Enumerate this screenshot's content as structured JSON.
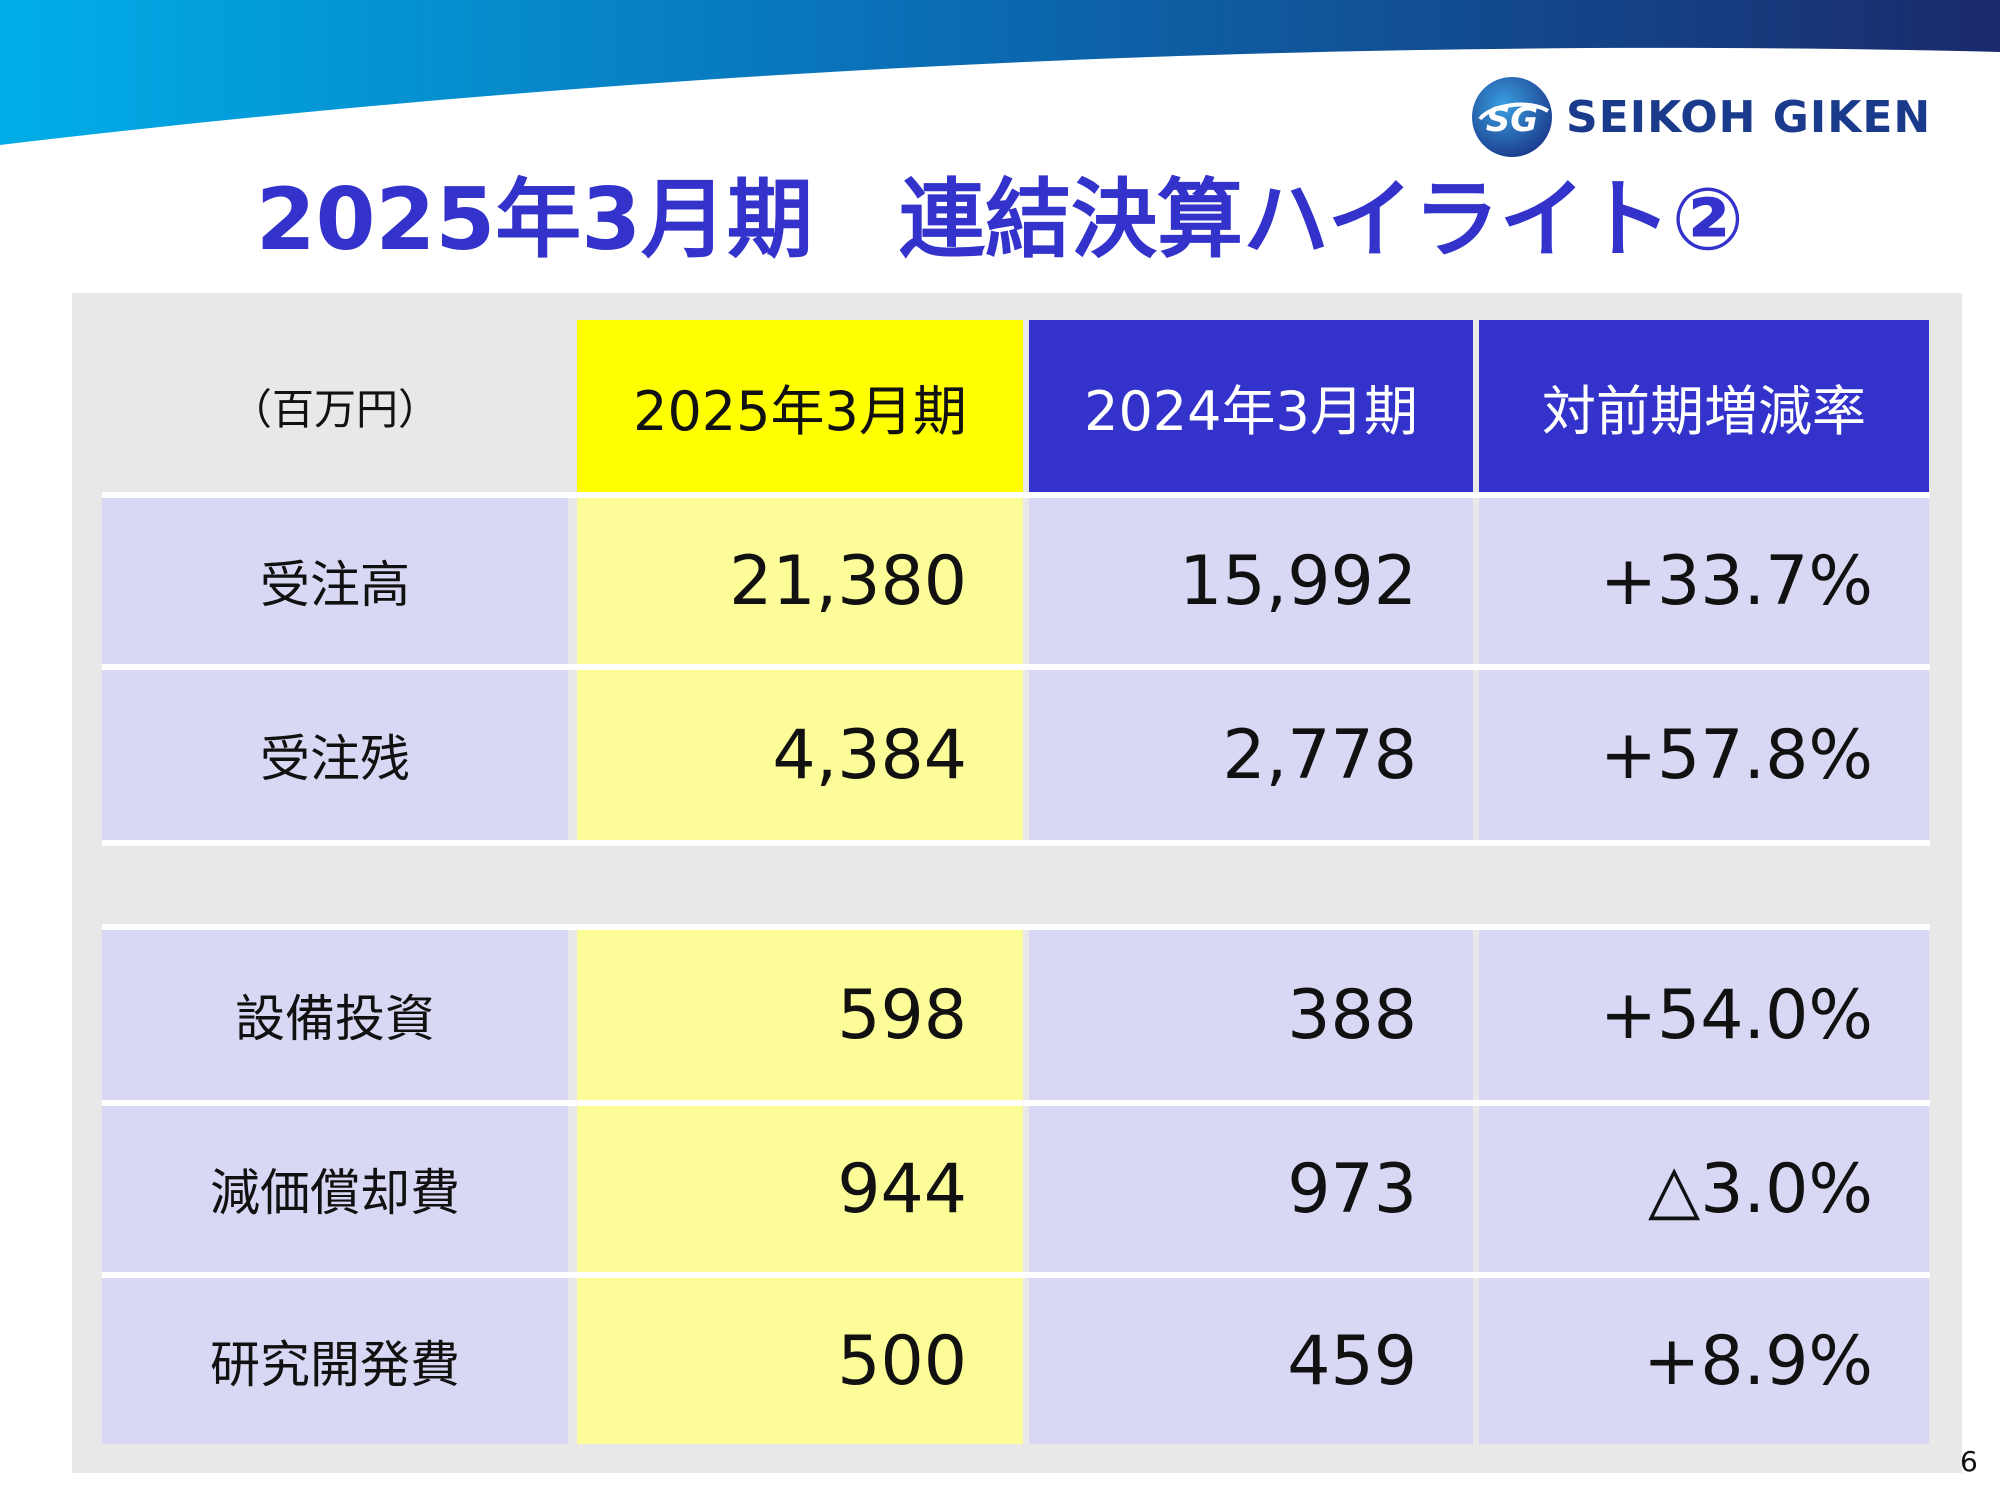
{
  "brand": {
    "logo_mark_text": "SG",
    "name": "SEIKOH GIKEN"
  },
  "title": "2025年3月期　連結決算ハイライト②",
  "table": {
    "unit": "（百万円）",
    "headers": [
      "2025年3月期",
      "2024年3月期",
      "対前期増減率"
    ],
    "group1": [
      {
        "label": "受注高",
        "current": "21,380",
        "previous": "15,992",
        "change": "+33.7%"
      },
      {
        "label": "受注残",
        "current": "4,384",
        "previous": "2,778",
        "change": "+57.8%"
      }
    ],
    "group2": [
      {
        "label": "設備投資",
        "current": "598",
        "previous": "388",
        "change": "+54.0%"
      },
      {
        "label": "減価償却費",
        "current": "944",
        "previous": "973",
        "change": "△3.0%"
      },
      {
        "label": "研究開発費",
        "current": "500",
        "previous": "459",
        "change": "+8.9%"
      }
    ]
  },
  "page_number": "6",
  "colors": {
    "title": "#3333cc",
    "header_current_bg": "#ffff00",
    "header_other_bg": "#3333cc",
    "current_column_bg": "#fcfc99",
    "other_cells_bg": "#d8d8f4",
    "panel_bg": "#e8e8e8",
    "banner_start": "#00aee8",
    "banner_end": "#1a2a6c",
    "brand_text": "#1a3a8c"
  }
}
